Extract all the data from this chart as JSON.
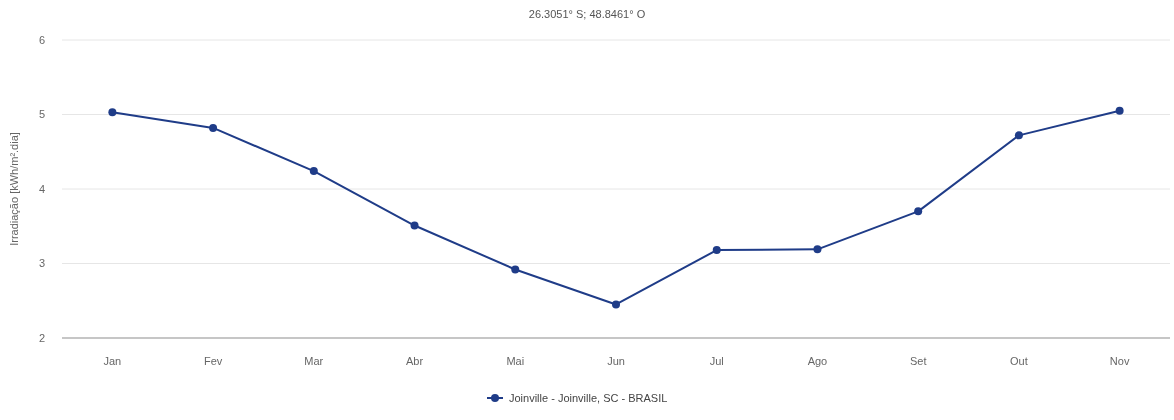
{
  "chart_data": {
    "type": "line",
    "title": "26.3051° S; 48.8461° O",
    "ylabel": "Irradiação [kWh/m².dia]",
    "categories": [
      "Jan",
      "Fev",
      "Mar",
      "Abr",
      "Mai",
      "Jun",
      "Jul",
      "Ago",
      "Set",
      "Out",
      "Nov"
    ],
    "series": [
      {
        "name": "Joinville - Joinville, SC - BRASIL",
        "color": "#1f3c88",
        "values": [
          5.03,
          4.82,
          4.24,
          3.51,
          2.92,
          2.45,
          3.18,
          3.19,
          3.7,
          4.72,
          5.05
        ]
      }
    ],
    "ylim": [
      2,
      6
    ],
    "yticks": [
      2,
      3,
      4,
      5,
      6
    ],
    "grid": "y",
    "legend": "bottom",
    "marker": "circle",
    "line_style": "solid"
  }
}
